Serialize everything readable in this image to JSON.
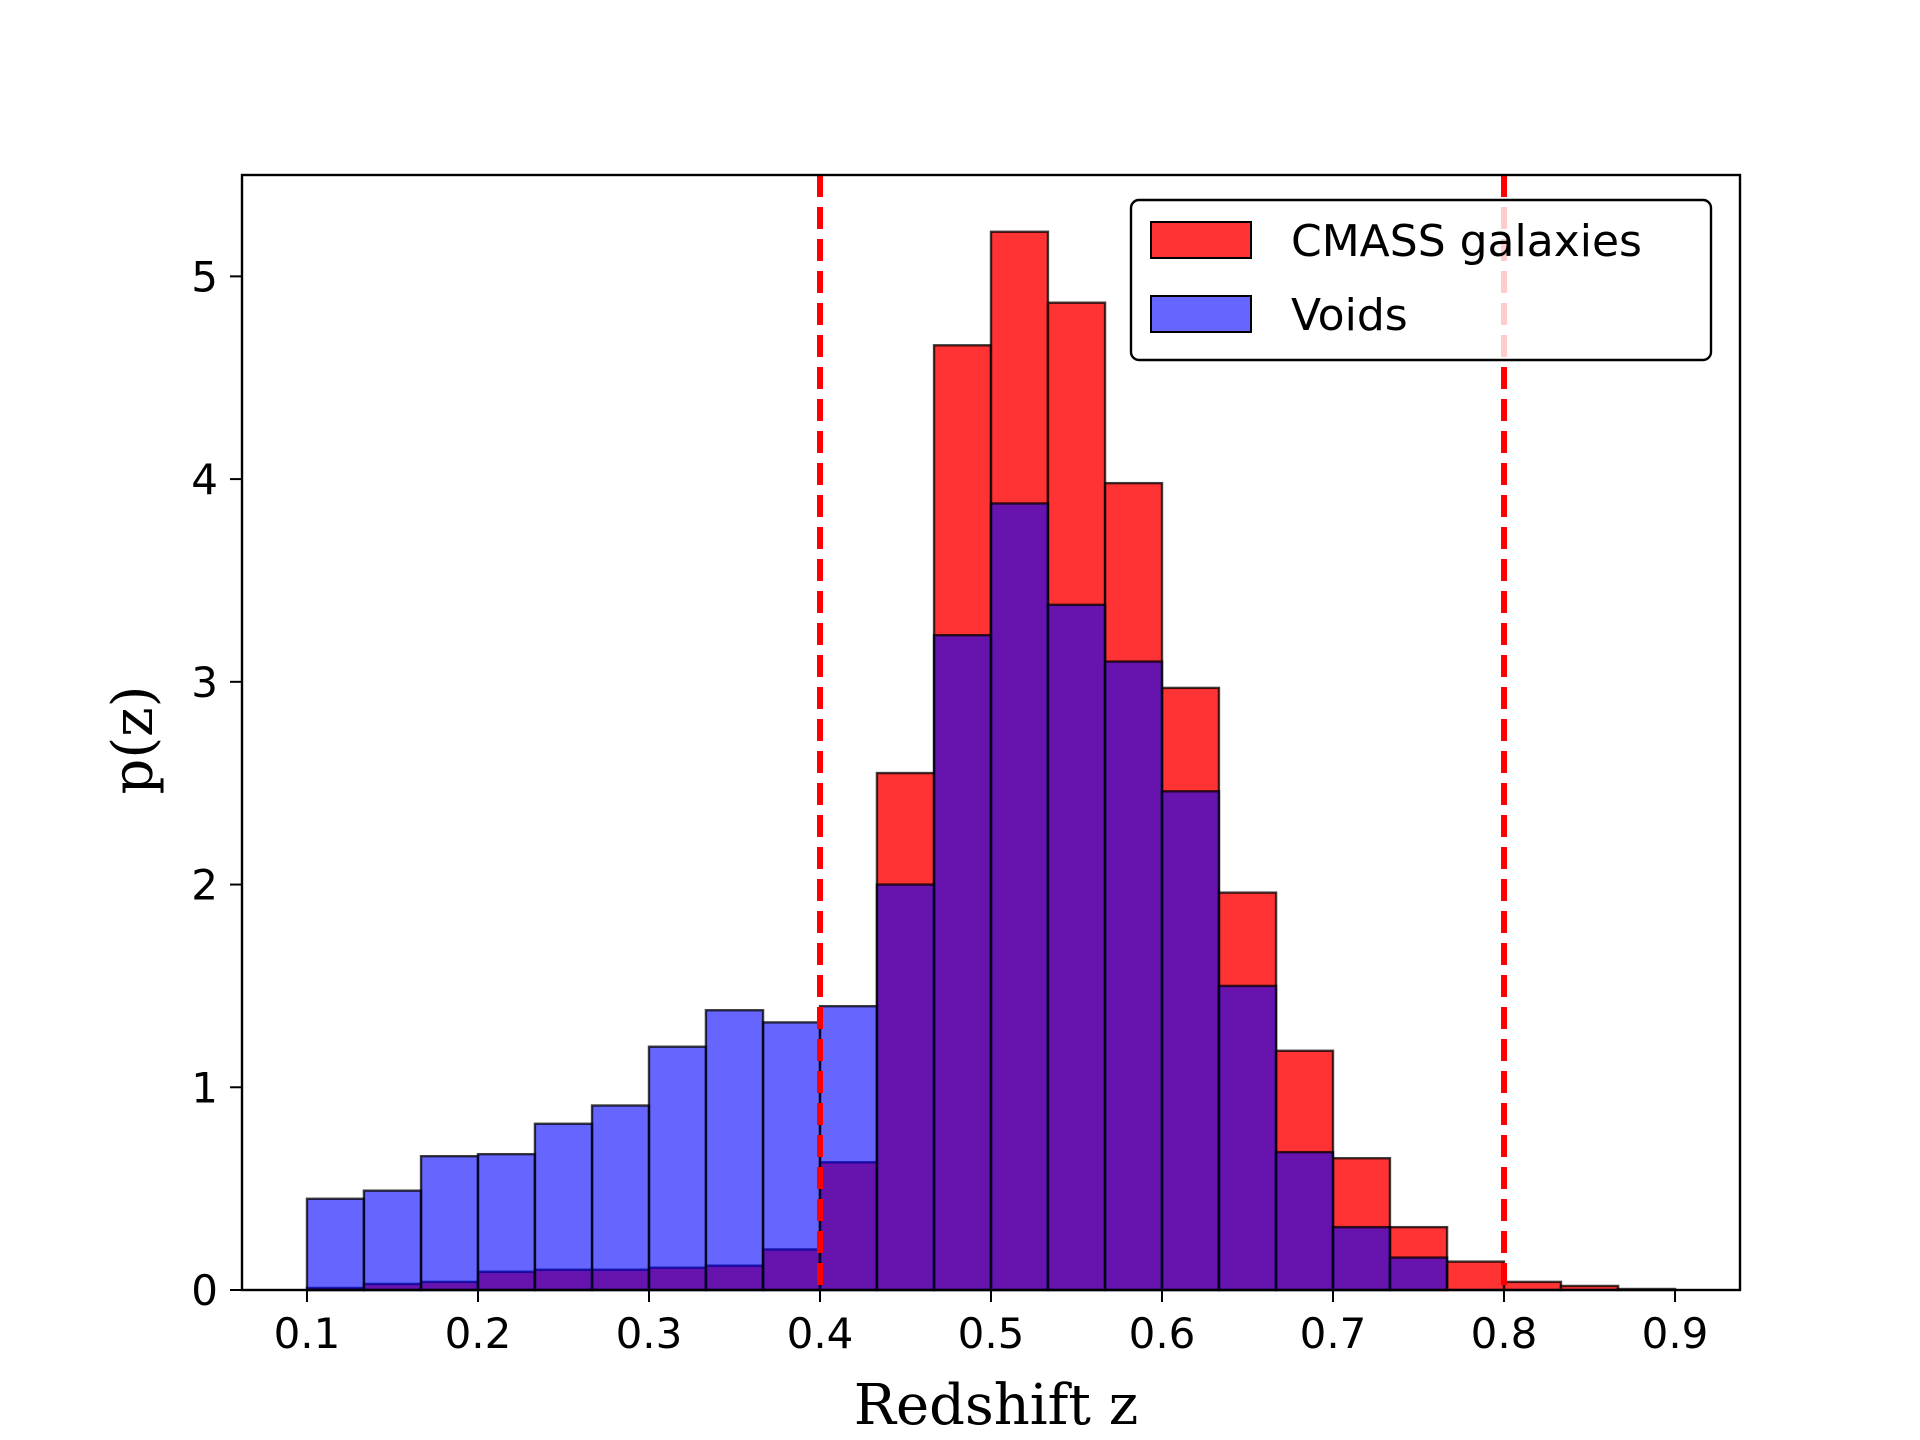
{
  "chart_data": {
    "type": "bar",
    "subtype": "histogram",
    "xlabel": "Redshift z",
    "ylabel": "p(z)",
    "xlim": [
      0.062,
      0.938
    ],
    "ylim": [
      0,
      5.5
    ],
    "xticks": [
      0.1,
      0.2,
      0.3,
      0.4,
      0.5,
      0.6,
      0.7,
      0.8,
      0.9
    ],
    "xtick_labels": [
      "0.1",
      "0.2",
      "0.3",
      "0.4",
      "0.5",
      "0.6",
      "0.7",
      "0.8",
      "0.9"
    ],
    "yticks": [
      0,
      1,
      2,
      3,
      4,
      5
    ],
    "ytick_labels": [
      "0",
      "1",
      "2",
      "3",
      "4",
      "5"
    ],
    "bin_edges": [
      0.1,
      0.1333,
      0.1667,
      0.2,
      0.2333,
      0.2667,
      0.3,
      0.3333,
      0.3667,
      0.4,
      0.4333,
      0.4667,
      0.5,
      0.5333,
      0.5667,
      0.6,
      0.6333,
      0.6667,
      0.7,
      0.7333,
      0.7667,
      0.8,
      0.8333,
      0.8667,
      0.9
    ],
    "series": [
      {
        "name": "CMASS galaxies",
        "color": "#ff0000",
        "alpha": 0.8,
        "values": [
          0.01,
          0.03,
          0.04,
          0.09,
          0.1,
          0.1,
          0.11,
          0.12,
          0.2,
          0.63,
          2.55,
          4.66,
          5.22,
          4.87,
          3.98,
          2.97,
          1.96,
          1.18,
          0.65,
          0.31,
          0.14,
          0.04,
          0.02,
          0.005
        ]
      },
      {
        "name": "Voids",
        "color": "#0000ff",
        "alpha": 0.6,
        "values": [
          0.45,
          0.49,
          0.66,
          0.67,
          0.82,
          0.91,
          1.2,
          1.38,
          1.32,
          1.4,
          2.0,
          3.23,
          3.88,
          3.38,
          3.1,
          2.46,
          1.5,
          0.68,
          0.31,
          0.16,
          0.0,
          0.0,
          0.0,
          0.0
        ]
      }
    ],
    "vlines": [
      {
        "x": 0.4,
        "color": "#ff0000",
        "style": "dashed"
      },
      {
        "x": 0.8,
        "color": "#ff0000",
        "style": "dashed"
      }
    ],
    "legend": {
      "position": "top-right",
      "entries": [
        "CMASS galaxies",
        "Voids"
      ]
    }
  }
}
